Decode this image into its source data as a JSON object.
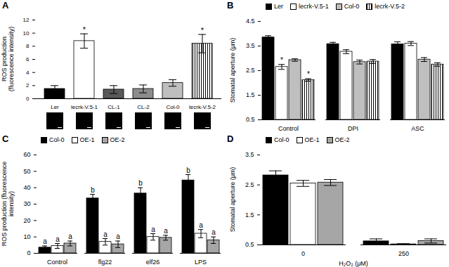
{
  "chart_data": [
    {
      "type": "bar",
      "title": "A",
      "y_label": "ROS production (fluorescence intensity)",
      "categories": [
        "Ler",
        "lecrk-V.5-1",
        "CL-1",
        "CL-2",
        "Col-0",
        "lecrk-V.5-2"
      ],
      "values": [
        1.5,
        8.8,
        1.4,
        1.5,
        2.4,
        8.4
      ],
      "errors": [
        0.5,
        1.1,
        0.6,
        0.6,
        0.5,
        1.4
      ],
      "significance": [
        null,
        "*",
        null,
        null,
        null,
        "*"
      ],
      "colors": [
        "#000000",
        "#ffffff",
        "#595959",
        "#8c8c8c",
        "#bfbfbf",
        "#ffffff"
      ],
      "markers": [
        null,
        null,
        null,
        null,
        null,
        "vertical_stripes"
      ],
      "ylim": [
        0,
        12
      ],
      "yticks": [
        0,
        2,
        4,
        6,
        8,
        10,
        12
      ]
    },
    {
      "type": "bar",
      "title": "B",
      "y_label": "Stomatal aperture (μm)",
      "categories": [
        "Control",
        "DPI",
        "ASC"
      ],
      "series": [
        {
          "name": "Ler",
          "color": "#000000",
          "values": [
            3.85,
            3.58,
            3.57
          ],
          "errors": [
            0.07,
            0.07,
            0.1
          ],
          "significance": [
            null,
            null,
            null
          ]
        },
        {
          "name": "lecrk-V.5-1",
          "color": "#ffffff",
          "values": [
            2.65,
            3.27,
            3.6
          ],
          "errors": [
            0.1,
            0.08,
            0.08
          ],
          "significance": [
            "*",
            null,
            null
          ]
        },
        {
          "name": "Col-0",
          "color": "#bfbfbf",
          "values": [
            2.93,
            2.85,
            2.95
          ],
          "errors": [
            0.05,
            0.08,
            0.08
          ],
          "significance": [
            null,
            null,
            null
          ]
        },
        {
          "name": "lecrk-V.5-2",
          "color": "#ffffff",
          "marker": "vertical_stripes",
          "values": [
            2.12,
            2.87,
            2.75
          ],
          "errors": [
            0.05,
            0.08,
            0.07
          ],
          "significance": [
            "*",
            null,
            null
          ]
        }
      ],
      "legend": "top",
      "ylim": [
        0.5,
        4.5
      ],
      "yticks": [
        0.5,
        1.5,
        2.5,
        3.5,
        4.5
      ]
    },
    {
      "type": "bar",
      "title": "C",
      "y_label": "ROS production (fluorescence intensity)",
      "categories": [
        "Control",
        "flg22",
        "elf26",
        "LPS"
      ],
      "series": [
        {
          "name": "Col-0",
          "color": "#000000",
          "values": [
            3.5,
            33.5,
            36.5,
            44.5
          ],
          "errors": [
            1.0,
            2.5,
            3.5,
            3.5
          ],
          "significance": [
            "a",
            "b",
            "b",
            "b"
          ]
        },
        {
          "name": "OE-1",
          "color": "#ffffff",
          "values": [
            4.5,
            7.0,
            10.0,
            12.0
          ],
          "errors": [
            1.5,
            2.0,
            2.0,
            2.5
          ],
          "significance": [
            "a",
            "a",
            "a",
            "a"
          ]
        },
        {
          "name": "OE-2",
          "color": "#a6a6a6",
          "values": [
            6.0,
            5.5,
            9.5,
            8.0
          ],
          "errors": [
            1.5,
            2.0,
            1.5,
            2.0
          ],
          "significance": [
            "a",
            "a",
            "a",
            "a"
          ]
        }
      ],
      "legend": "top",
      "ylim": [
        0,
        60
      ],
      "yticks": [
        0,
        10,
        20,
        30,
        40,
        50,
        60
      ]
    },
    {
      "type": "bar",
      "title": "D",
      "y_label": "Stomatal aperture (μm)",
      "x_label": "H₂O₂ (μM)",
      "categories": [
        "0",
        "250"
      ],
      "series": [
        {
          "name": "Col-0",
          "color": "#000000",
          "values": [
            2.82,
            0.62
          ],
          "errors": [
            0.15,
            0.08
          ]
        },
        {
          "name": "OE-1",
          "color": "#ffffff",
          "values": [
            2.55,
            0.52
          ],
          "errors": [
            0.1,
            0.02
          ]
        },
        {
          "name": "OE-2",
          "color": "#a6a6a6",
          "values": [
            2.58,
            0.63
          ],
          "errors": [
            0.1,
            0.07
          ]
        }
      ],
      "legend": "top",
      "ylim": [
        0.5,
        3.5
      ],
      "yticks": [
        0.5,
        1.5,
        2.5,
        3.5
      ]
    }
  ]
}
